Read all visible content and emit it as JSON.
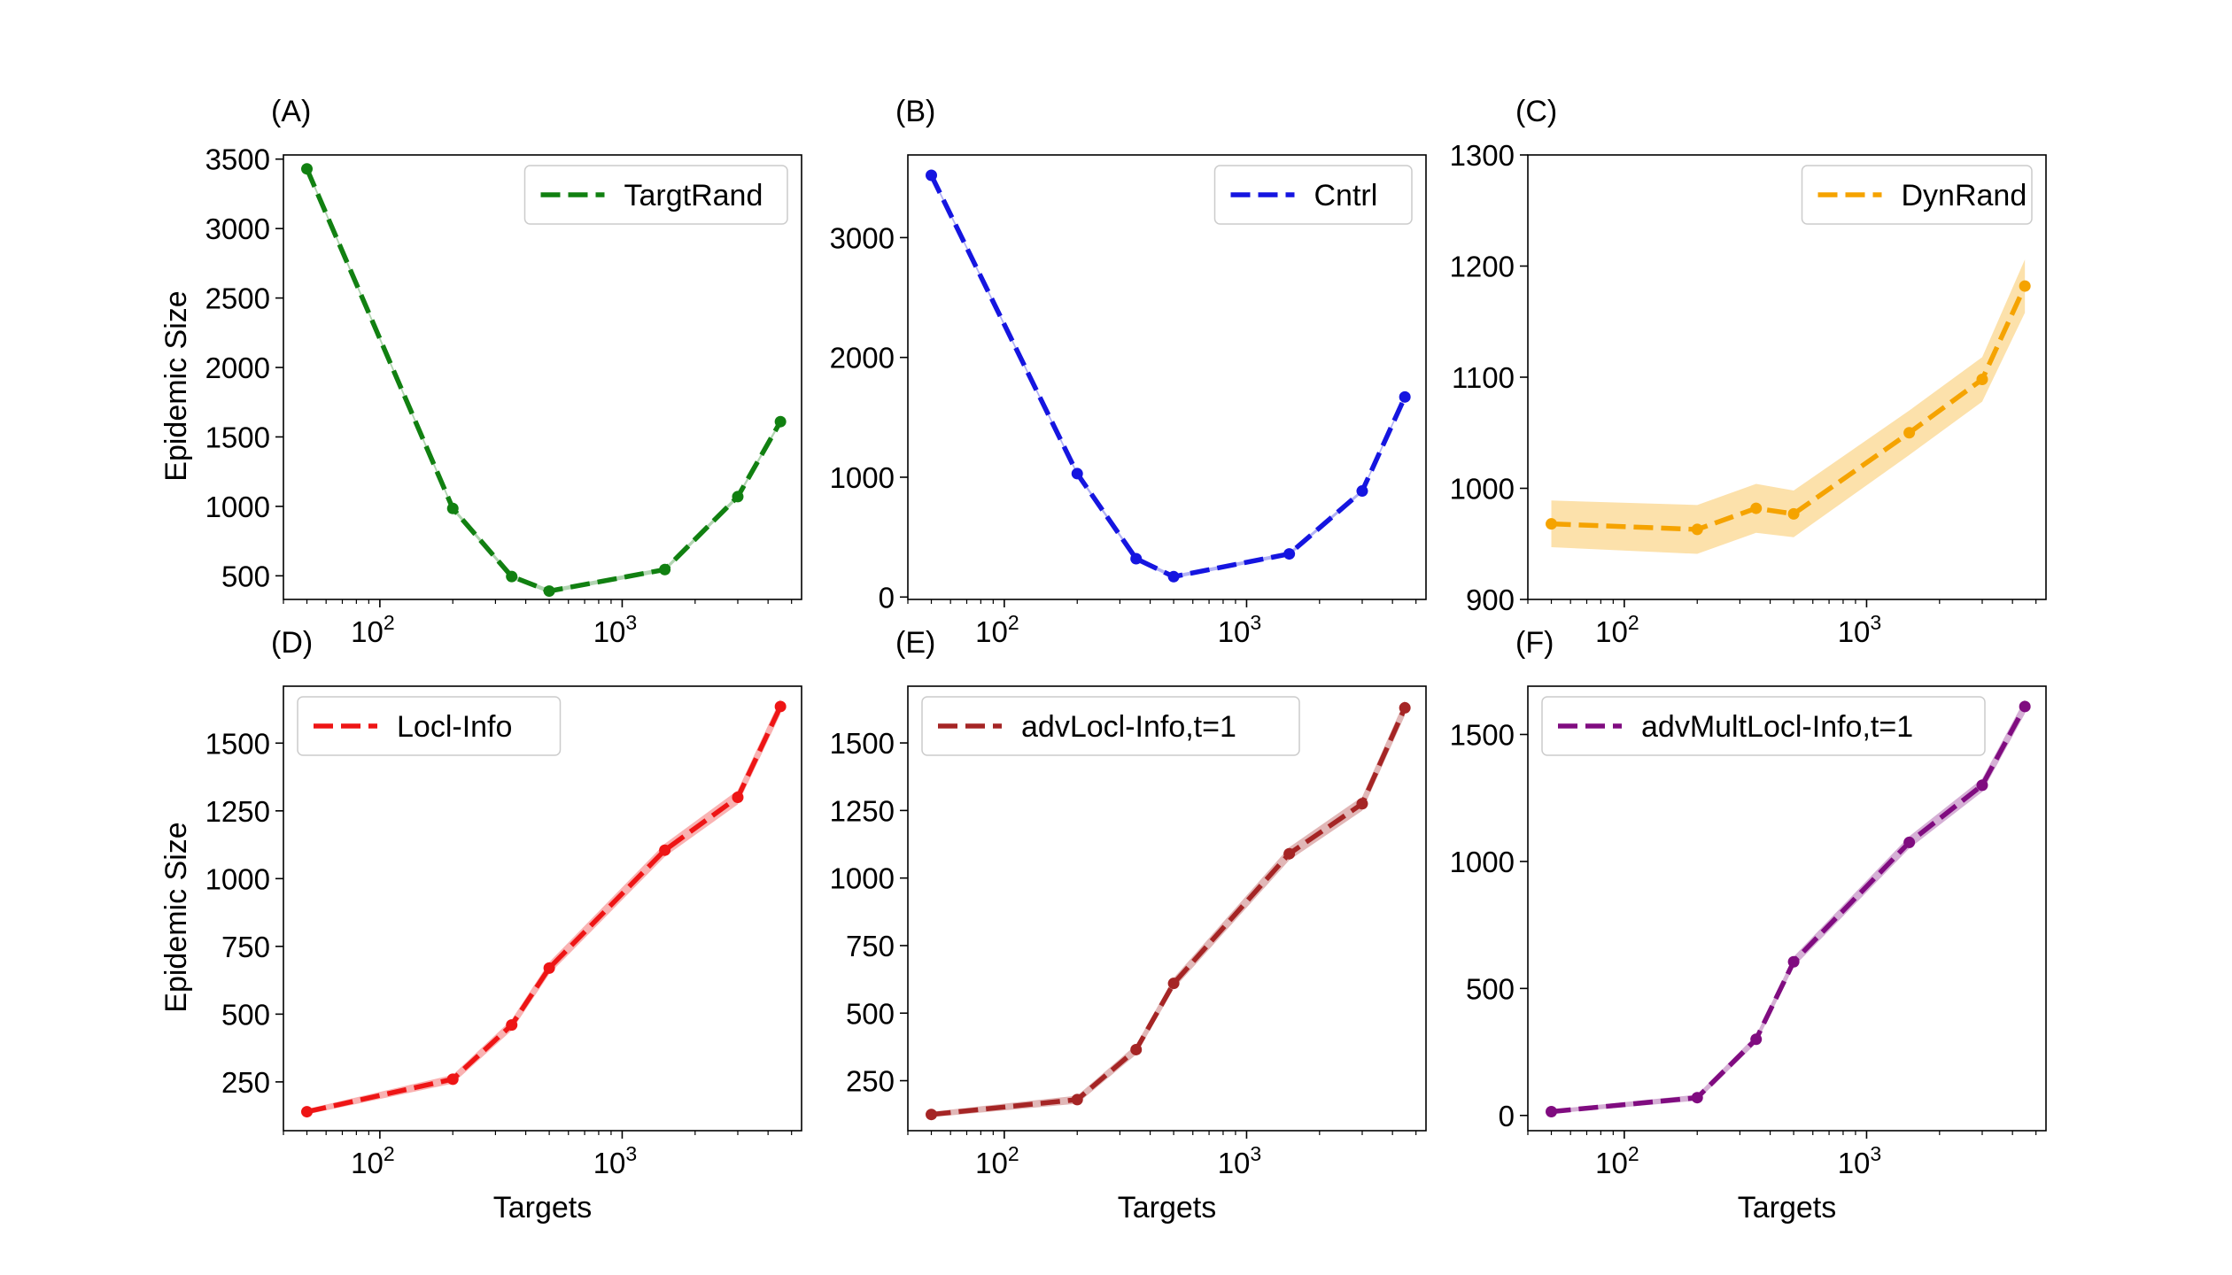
{
  "chart_data": [
    {
      "id": "A",
      "type": "line",
      "panel_label": "(A)",
      "xscale": "log",
      "xlim": [
        40,
        5500
      ],
      "ylim": [
        330,
        3530
      ],
      "xticks": [
        {
          "value": 100,
          "base": "10",
          "exp": "2"
        },
        {
          "value": 1000,
          "base": "10",
          "exp": "3"
        }
      ],
      "yticks": [
        500,
        1000,
        1500,
        2000,
        2500,
        3000,
        3500
      ],
      "ytick_labels": [
        "500",
        "1000",
        "1500",
        "2000",
        "2500",
        "3000",
        "3500"
      ],
      "xlabel": "",
      "ylabel": "Epidemic Size",
      "legend": "top-right",
      "series": [
        {
          "name": "TargtRand",
          "color": "#118011",
          "x": [
            50,
            200,
            350,
            500,
            1500,
            3000,
            4500
          ],
          "y": [
            3430,
            985,
            495,
            390,
            545,
            1070,
            1610
          ],
          "band": [
            15,
            15,
            15,
            15,
            15,
            15,
            15
          ]
        }
      ]
    },
    {
      "id": "B",
      "type": "line",
      "panel_label": "(B)",
      "xscale": "log",
      "xlim": [
        40,
        5500
      ],
      "ylim": [
        -20,
        3690
      ],
      "xticks": [
        {
          "value": 100,
          "base": "10",
          "exp": "2"
        },
        {
          "value": 1000,
          "base": "10",
          "exp": "3"
        }
      ],
      "yticks": [
        0,
        1000,
        2000,
        3000
      ],
      "ytick_labels": [
        "0",
        "1000",
        "2000",
        "3000"
      ],
      "xlabel": "",
      "ylabel": "",
      "legend": "top-right",
      "series": [
        {
          "name": "Cntrl",
          "color": "#1515e0",
          "x": [
            50,
            200,
            350,
            500,
            1500,
            3000,
            4500
          ],
          "y": [
            3520,
            1030,
            320,
            170,
            360,
            885,
            1670
          ],
          "band": [
            15,
            15,
            15,
            15,
            15,
            15,
            15
          ]
        }
      ]
    },
    {
      "id": "C",
      "type": "line",
      "panel_label": "(C)",
      "xscale": "log",
      "xlim": [
        40,
        5500
      ],
      "ylim": [
        900,
        1300
      ],
      "xticks": [
        {
          "value": 100,
          "base": "10",
          "exp": "2"
        },
        {
          "value": 1000,
          "base": "10",
          "exp": "3"
        }
      ],
      "yticks": [
        900,
        1000,
        1100,
        1200,
        1300
      ],
      "ytick_labels": [
        "900",
        "1000",
        "1100",
        "1200",
        "1300"
      ],
      "xlabel": "",
      "ylabel": "",
      "legend": "top-right",
      "series": [
        {
          "name": "DynRand",
          "color": "#f5a300",
          "x": [
            50,
            200,
            350,
            500,
            1500,
            3000,
            4500
          ],
          "y": [
            968,
            963,
            982,
            977,
            1050,
            1098,
            1182
          ],
          "band": [
            21,
            22,
            22,
            21,
            20,
            20,
            24
          ]
        }
      ]
    },
    {
      "id": "D",
      "type": "line",
      "panel_label": "(D)",
      "xscale": "log",
      "xlim": [
        40,
        5500
      ],
      "ylim": [
        70,
        1710
      ],
      "xticks": [
        {
          "value": 100,
          "base": "10",
          "exp": "2"
        },
        {
          "value": 1000,
          "base": "10",
          "exp": "3"
        }
      ],
      "yticks": [
        250,
        500,
        750,
        1000,
        1250,
        1500
      ],
      "ytick_labels": [
        "250",
        "500",
        "750",
        "1000",
        "1250",
        "1500"
      ],
      "xlabel": "Targets",
      "ylabel": "Epidemic Size",
      "legend": "top-left",
      "series": [
        {
          "name": "Locl-Info",
          "color": "#ee1515",
          "x": [
            50,
            200,
            350,
            500,
            1500,
            3000,
            4500
          ],
          "y": [
            140,
            260,
            460,
            670,
            1105,
            1300,
            1635
          ],
          "band": [
            10,
            16,
            20,
            22,
            24,
            26,
            28
          ]
        }
      ]
    },
    {
      "id": "E",
      "type": "line",
      "panel_label": "(E)",
      "xscale": "log",
      "xlim": [
        40,
        5500
      ],
      "ylim": [
        65,
        1710
      ],
      "xticks": [
        {
          "value": 100,
          "base": "10",
          "exp": "2"
        },
        {
          "value": 1000,
          "base": "10",
          "exp": "3"
        }
      ],
      "yticks": [
        250,
        500,
        750,
        1000,
        1250,
        1500
      ],
      "ytick_labels": [
        "250",
        "500",
        "750",
        "1000",
        "1250",
        "1500"
      ],
      "xlabel": "Targets",
      "ylabel": "",
      "legend": "top-left",
      "series": [
        {
          "name": "advLocl-Info,t=1",
          "color": "#a52525",
          "x": [
            50,
            200,
            350,
            500,
            1500,
            3000,
            4500
          ],
          "y": [
            125,
            180,
            365,
            610,
            1090,
            1275,
            1630
          ],
          "band": [
            10,
            15,
            18,
            20,
            24,
            26,
            28
          ]
        }
      ]
    },
    {
      "id": "F",
      "type": "line",
      "panel_label": "(F)",
      "xscale": "log",
      "xlim": [
        40,
        5500
      ],
      "ylim": [
        -60,
        1690
      ],
      "xticks": [
        {
          "value": 100,
          "base": "10",
          "exp": "2"
        },
        {
          "value": 1000,
          "base": "10",
          "exp": "3"
        }
      ],
      "yticks": [
        0,
        500,
        1000,
        1500
      ],
      "ytick_labels": [
        "0",
        "500",
        "1000",
        "1500"
      ],
      "xlabel": "Targets",
      "ylabel": "",
      "legend": "top-left",
      "series": [
        {
          "name": "advMultLocl-Info,t=1",
          "color": "#800c80",
          "x": [
            50,
            200,
            350,
            500,
            1500,
            3000,
            4500
          ],
          "y": [
            15,
            70,
            300,
            605,
            1075,
            1300,
            1610
          ],
          "band": [
            8,
            12,
            16,
            20,
            24,
            26,
            28
          ]
        }
      ]
    }
  ]
}
